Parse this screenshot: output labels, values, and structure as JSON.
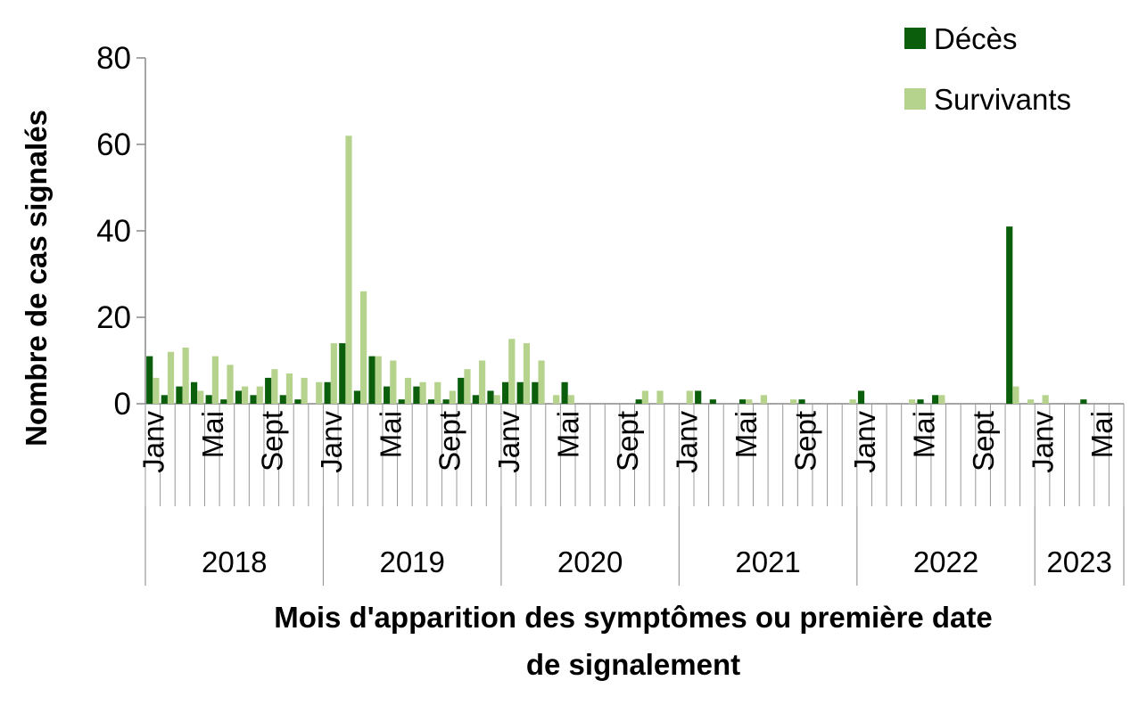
{
  "chart_data": {
    "type": "bar",
    "title": "",
    "ylabel": "Nombre de cas signalés",
    "xlabel_lines": [
      "Mois d'apparition des symptômes ou première date",
      "de signalement"
    ],
    "ylim": [
      0,
      80
    ],
    "yticks": [
      "0",
      "20",
      "40",
      "60",
      "80"
    ],
    "legend": [
      "Décès",
      "Survivants"
    ],
    "colors": {
      "deces": "#0b5e0b",
      "survivants": "#b5d38c"
    },
    "month_labels": [
      {
        "index": 0,
        "label": "Janv"
      },
      {
        "index": 4,
        "label": "Mai"
      },
      {
        "index": 8,
        "label": "Sept"
      },
      {
        "index": 12,
        "label": "Janv"
      },
      {
        "index": 16,
        "label": "Mai"
      },
      {
        "index": 20,
        "label": "Sept"
      },
      {
        "index": 24,
        "label": "Janv"
      },
      {
        "index": 28,
        "label": "Mai"
      },
      {
        "index": 32,
        "label": "Sept"
      },
      {
        "index": 36,
        "label": "Janv"
      },
      {
        "index": 40,
        "label": "Mai"
      },
      {
        "index": 44,
        "label": "Sept"
      },
      {
        "index": 48,
        "label": "Janv"
      },
      {
        "index": 52,
        "label": "Mai"
      },
      {
        "index": 56,
        "label": "Sept"
      },
      {
        "index": 60,
        "label": "Janv"
      },
      {
        "index": 64,
        "label": "Mai"
      }
    ],
    "years": [
      {
        "label": "2018",
        "start": 0,
        "months": 12
      },
      {
        "label": "2019",
        "start": 12,
        "months": 12
      },
      {
        "label": "2020",
        "start": 24,
        "months": 12
      },
      {
        "label": "2021",
        "start": 36,
        "months": 12
      },
      {
        "label": "2022",
        "start": 48,
        "months": 12
      },
      {
        "label": "2023",
        "start": 60,
        "months": 6
      }
    ],
    "month_count": 66,
    "series": [
      {
        "name": "Décès",
        "values": [
          11,
          2,
          4,
          5,
          2,
          1,
          3,
          2,
          6,
          2,
          1,
          0,
          5,
          14,
          3,
          11,
          4,
          1,
          4,
          1,
          1,
          6,
          2,
          3,
          5,
          5,
          5,
          0,
          5,
          0,
          0,
          0,
          0,
          1,
          0,
          0,
          0,
          3,
          1,
          0,
          1,
          0,
          0,
          0,
          1,
          0,
          0,
          0,
          3,
          0,
          0,
          0,
          1,
          2,
          0,
          0,
          0,
          0,
          41,
          0,
          0,
          0,
          0,
          1,
          0,
          0
        ]
      },
      {
        "name": "Survivants",
        "values": [
          6,
          12,
          13,
          3,
          11,
          9,
          4,
          4,
          8,
          7,
          6,
          5,
          14,
          62,
          26,
          11,
          10,
          6,
          5,
          5,
          3,
          8,
          10,
          2,
          15,
          14,
          10,
          2,
          2,
          0,
          0,
          0,
          0,
          3,
          3,
          0,
          3,
          0,
          0,
          0,
          1,
          2,
          0,
          1,
          0,
          0,
          0,
          1,
          0,
          0,
          0,
          1,
          0,
          2,
          0,
          0,
          0,
          0,
          4,
          1,
          2,
          0,
          0,
          0,
          0,
          0
        ]
      }
    ]
  }
}
